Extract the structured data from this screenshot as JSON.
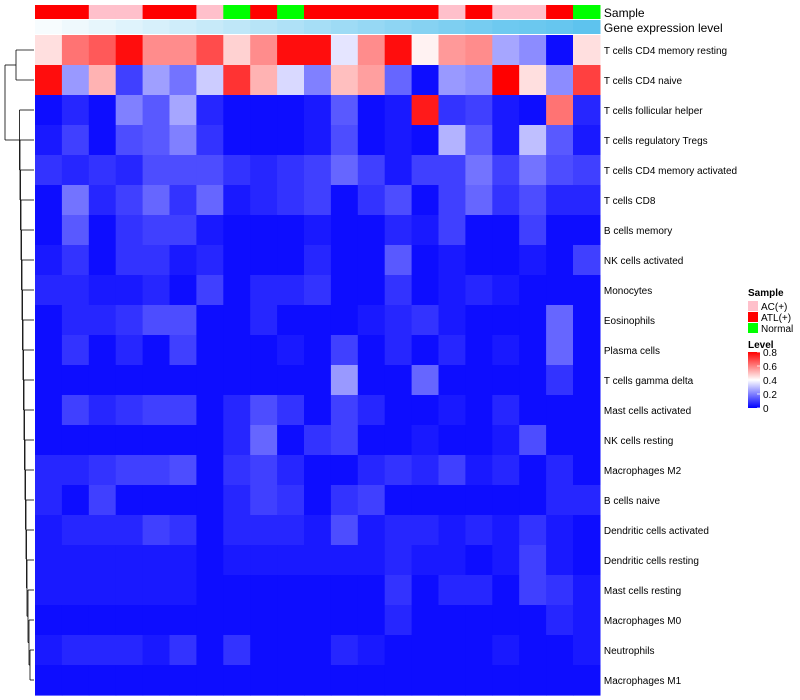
{
  "chart_data": {
    "type": "heatmap",
    "title": "",
    "annotation_rows": [
      "Sample",
      "Gene expression level"
    ],
    "sample_groups": [
      "ATL(+)",
      "ATL(+)",
      "AC(+)",
      "AC(+)",
      "ATL(+)",
      "ATL(+)",
      "AC(+)",
      "Normal",
      "ATL(+)",
      "Normal",
      "ATL(+)",
      "ATL(+)",
      "ATL(+)",
      "ATL(+)",
      "ATL(+)",
      "AC(+)",
      "ATL(+)",
      "AC(+)",
      "AC(+)",
      "ATL(+)",
      "Normal"
    ],
    "expression_level": [
      0.05,
      0.1,
      0.15,
      0.2,
      0.25,
      0.3,
      0.35,
      0.4,
      0.45,
      0.5,
      0.55,
      0.6,
      0.65,
      0.7,
      0.75,
      0.8,
      0.85,
      0.9,
      0.92,
      0.95,
      1.0
    ],
    "rows": [
      "T cells CD4 memory resting",
      "T cells CD4 naive",
      "T cells follicular helper",
      "T cells regulatory  Tregs",
      "T cells CD4 memory activated",
      "T cells CD8",
      "B cells memory",
      "NK cells activated",
      "Monocytes",
      "Eosinophils",
      "Plasma cells",
      "T cells gamma delta",
      "Mast cells activated",
      "NK cells resting",
      "Macrophages M2",
      "B cells naive",
      "Dendritic cells activated",
      "Dendritic cells resting",
      "Mast cells resting",
      "Macrophages M0",
      "Neutrophils",
      "Macrophages M1"
    ],
    "values": [
      [
        0.45,
        0.62,
        0.66,
        0.78,
        0.58,
        0.58,
        0.68,
        0.47,
        0.58,
        0.78,
        0.78,
        0.36,
        0.58,
        0.78,
        0.42,
        0.56,
        0.58,
        0.26,
        0.22,
        0.02,
        0.45
      ],
      [
        0.78,
        0.24,
        0.52,
        0.1,
        0.25,
        0.18,
        0.32,
        0.72,
        0.52,
        0.34,
        0.2,
        0.5,
        0.55,
        0.16,
        0.02,
        0.24,
        0.22,
        0.8,
        0.45,
        0.22,
        0.7
      ],
      [
        0.02,
        0.06,
        0.02,
        0.2,
        0.14,
        0.26,
        0.06,
        0.02,
        0.02,
        0.02,
        0.04,
        0.14,
        0.02,
        0.04,
        0.76,
        0.08,
        0.1,
        0.04,
        0.02,
        0.62,
        0.06
      ],
      [
        0.04,
        0.1,
        0.02,
        0.12,
        0.14,
        0.2,
        0.08,
        0.02,
        0.02,
        0.02,
        0.04,
        0.12,
        0.02,
        0.04,
        0.02,
        0.28,
        0.14,
        0.04,
        0.3,
        0.14,
        0.04
      ],
      [
        0.08,
        0.06,
        0.08,
        0.06,
        0.12,
        0.12,
        0.12,
        0.08,
        0.06,
        0.08,
        0.1,
        0.16,
        0.1,
        0.04,
        0.1,
        0.1,
        0.18,
        0.1,
        0.18,
        0.12,
        0.1
      ],
      [
        0.02,
        0.18,
        0.06,
        0.1,
        0.16,
        0.08,
        0.16,
        0.04,
        0.06,
        0.08,
        0.1,
        0.02,
        0.08,
        0.12,
        0.02,
        0.1,
        0.16,
        0.08,
        0.12,
        0.06,
        0.06
      ],
      [
        0.02,
        0.14,
        0.02,
        0.08,
        0.1,
        0.1,
        0.04,
        0.02,
        0.02,
        0.02,
        0.04,
        0.02,
        0.02,
        0.06,
        0.04,
        0.1,
        0.02,
        0.02,
        0.1,
        0.02,
        0.02
      ],
      [
        0.04,
        0.08,
        0.02,
        0.08,
        0.08,
        0.04,
        0.06,
        0.02,
        0.02,
        0.02,
        0.06,
        0.02,
        0.02,
        0.14,
        0.02,
        0.04,
        0.02,
        0.02,
        0.04,
        0.02,
        0.1
      ],
      [
        0.06,
        0.06,
        0.04,
        0.04,
        0.06,
        0.02,
        0.1,
        0.02,
        0.06,
        0.06,
        0.08,
        0.02,
        0.02,
        0.08,
        0.02,
        0.04,
        0.06,
        0.04,
        0.02,
        0.02,
        0.02
      ],
      [
        0.02,
        0.06,
        0.06,
        0.08,
        0.12,
        0.12,
        0.02,
        0.02,
        0.06,
        0.02,
        0.02,
        0.02,
        0.04,
        0.06,
        0.08,
        0.04,
        0.02,
        0.02,
        0.02,
        0.16,
        0.02
      ],
      [
        0.02,
        0.08,
        0.02,
        0.06,
        0.02,
        0.1,
        0.02,
        0.02,
        0.02,
        0.04,
        0.02,
        0.1,
        0.02,
        0.06,
        0.02,
        0.06,
        0.02,
        0.04,
        0.02,
        0.16,
        0.02
      ],
      [
        0.02,
        0.02,
        0.02,
        0.02,
        0.02,
        0.02,
        0.02,
        0.02,
        0.02,
        0.02,
        0.02,
        0.24,
        0.02,
        0.02,
        0.16,
        0.02,
        0.02,
        0.02,
        0.02,
        0.08,
        0.02
      ],
      [
        0.02,
        0.1,
        0.06,
        0.08,
        0.1,
        0.1,
        0.02,
        0.06,
        0.12,
        0.08,
        0.02,
        0.1,
        0.06,
        0.02,
        0.02,
        0.04,
        0.02,
        0.06,
        0.02,
        0.02,
        0.02
      ],
      [
        0.02,
        0.02,
        0.02,
        0.02,
        0.02,
        0.02,
        0.02,
        0.06,
        0.16,
        0.02,
        0.08,
        0.1,
        0.02,
        0.02,
        0.04,
        0.02,
        0.02,
        0.04,
        0.12,
        0.02,
        0.02
      ],
      [
        0.06,
        0.06,
        0.08,
        0.1,
        0.1,
        0.12,
        0.02,
        0.08,
        0.1,
        0.06,
        0.02,
        0.02,
        0.06,
        0.08,
        0.06,
        0.1,
        0.04,
        0.06,
        0.02,
        0.06,
        0.02
      ],
      [
        0.06,
        0.02,
        0.1,
        0.02,
        0.02,
        0.02,
        0.02,
        0.06,
        0.1,
        0.08,
        0.02,
        0.08,
        0.1,
        0.02,
        0.02,
        0.02,
        0.02,
        0.02,
        0.02,
        0.06,
        0.06
      ],
      [
        0.04,
        0.06,
        0.06,
        0.06,
        0.1,
        0.08,
        0.02,
        0.06,
        0.06,
        0.06,
        0.04,
        0.12,
        0.04,
        0.06,
        0.06,
        0.04,
        0.06,
        0.04,
        0.08,
        0.04,
        0.02
      ],
      [
        0.04,
        0.04,
        0.04,
        0.04,
        0.04,
        0.04,
        0.02,
        0.04,
        0.04,
        0.04,
        0.04,
        0.04,
        0.04,
        0.06,
        0.04,
        0.04,
        0.02,
        0.04,
        0.1,
        0.04,
        0.02
      ],
      [
        0.04,
        0.04,
        0.04,
        0.04,
        0.04,
        0.04,
        0.02,
        0.02,
        0.02,
        0.02,
        0.02,
        0.02,
        0.02,
        0.08,
        0.02,
        0.06,
        0.06,
        0.02,
        0.1,
        0.08,
        0.04
      ],
      [
        0.02,
        0.02,
        0.02,
        0.02,
        0.02,
        0.02,
        0.02,
        0.02,
        0.02,
        0.02,
        0.02,
        0.02,
        0.02,
        0.06,
        0.02,
        0.02,
        0.02,
        0.02,
        0.02,
        0.06,
        0.04
      ],
      [
        0.04,
        0.06,
        0.06,
        0.06,
        0.04,
        0.08,
        0.02,
        0.08,
        0.02,
        0.02,
        0.02,
        0.06,
        0.04,
        0.02,
        0.02,
        0.02,
        0.02,
        0.04,
        0.02,
        0.02,
        0.04
      ],
      [
        0.02,
        0.02,
        0.02,
        0.02,
        0.02,
        0.02,
        0.02,
        0.02,
        0.02,
        0.02,
        0.02,
        0.02,
        0.02,
        0.02,
        0.02,
        0.02,
        0.02,
        0.02,
        0.02,
        0.02,
        0.02
      ]
    ],
    "colorscale": {
      "low": "#0000ff",
      "mid": "#ffffff",
      "high": "#ff0000",
      "range": [
        0,
        0.8
      ],
      "mid_value": 0.4
    },
    "annotation_colors": {
      "AC(+)": "#ffc0cb",
      "ATL(+)": "#ff0000",
      "Normal": "#00ff00",
      "expr_low": "#ffffff",
      "expr_high": "#5ec3ee"
    },
    "legend": {
      "sample_title": "Sample",
      "sample_entries": [
        "AC(+)",
        "ATL(+)",
        "Normal"
      ],
      "level_title": "Level",
      "level_ticks": [
        0.8,
        0.6,
        0.4,
        0.2,
        0
      ],
      "level_tick_labels": [
        "0.8",
        "0.6",
        "0.4",
        "0.2",
        "0"
      ]
    },
    "row_dendrogram": true,
    "legend_position": "right"
  }
}
